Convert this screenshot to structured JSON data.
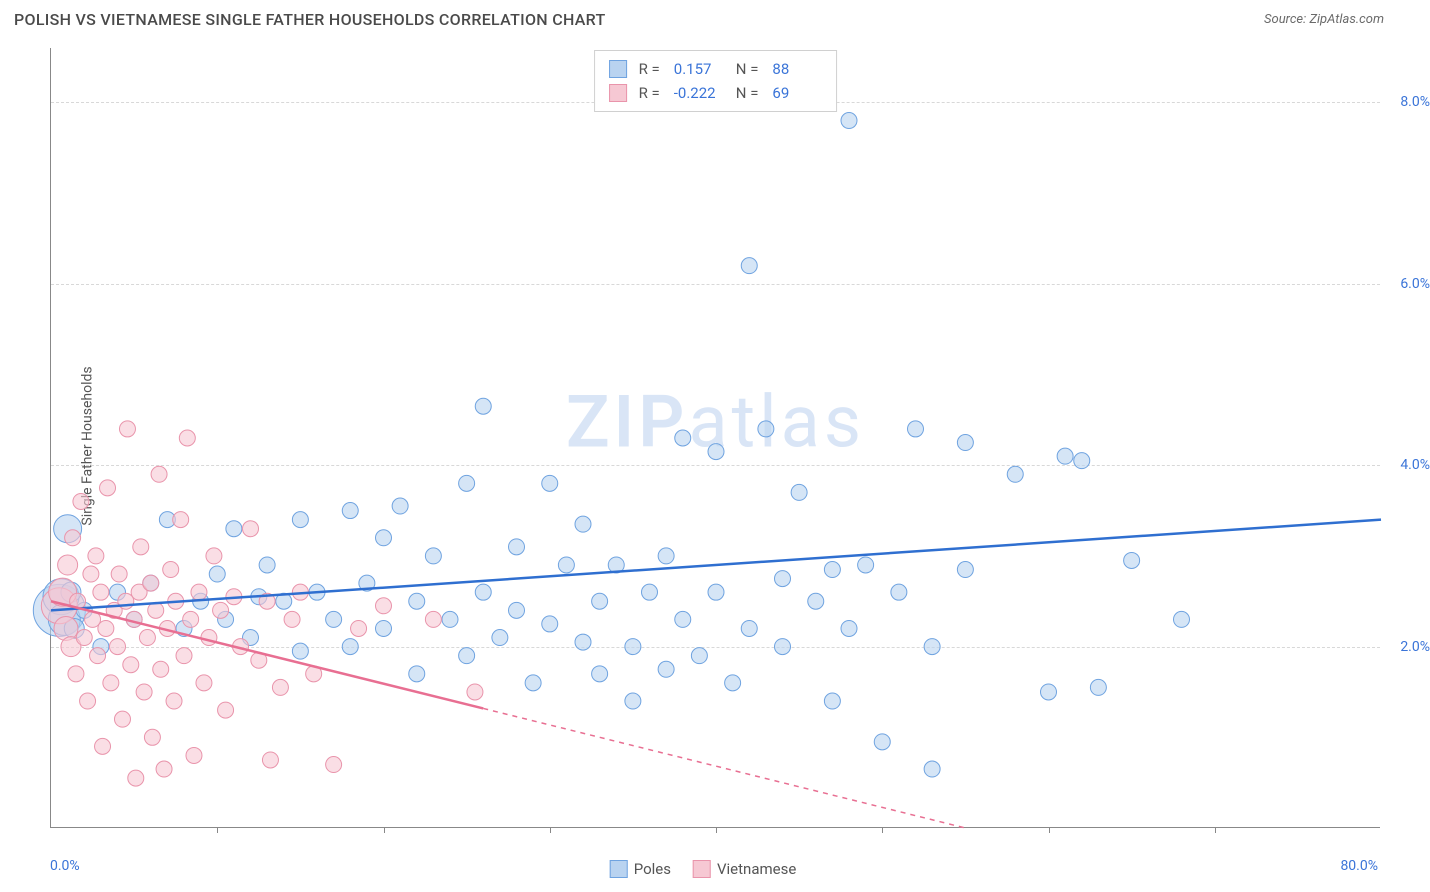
{
  "header": {
    "title": "POLISH VS VIETNAMESE SINGLE FATHER HOUSEHOLDS CORRELATION CHART",
    "source_prefix": "Source: ",
    "source_name": "ZipAtlas.com"
  },
  "chart": {
    "type": "scatter",
    "ylabel": "Single Father Households",
    "x_domain": [
      0,
      80
    ],
    "y_domain": [
      0,
      8.6
    ],
    "x_min_label": "0.0%",
    "x_max_label": "80.0%",
    "x_tick_positions": [
      10,
      20,
      30,
      40,
      50,
      60,
      70
    ],
    "y_ticks": [
      {
        "v": 2.0,
        "label": "2.0%"
      },
      {
        "v": 4.0,
        "label": "4.0%"
      },
      {
        "v": 6.0,
        "label": "6.0%"
      },
      {
        "v": 8.0,
        "label": "8.0%"
      }
    ],
    "axis_label_color": "#3a74d8",
    "grid_color": "#d8d8d8",
    "background_color": "#ffffff",
    "watermark": {
      "zip": "ZIP",
      "atlas": "atlas",
      "color": "#d9e5f6"
    },
    "series": [
      {
        "id": "poles",
        "name": "Poles",
        "fill": "#b9d3f0",
        "stroke": "#6fa3e0",
        "line_color": "#2f6fd0",
        "trend": {
          "x1": 0,
          "y1": 2.4,
          "x2": 80,
          "y2": 3.4,
          "solid_until_x": 80
        },
        "R_label": "R = ",
        "R": "0.157",
        "N_label": "N = ",
        "N": "88",
        "points": [
          {
            "x": 0.5,
            "y": 2.4,
            "r": 26
          },
          {
            "x": 0.6,
            "y": 2.55,
            "r": 18
          },
          {
            "x": 0.8,
            "y": 2.3,
            "r": 16
          },
          {
            "x": 1.0,
            "y": 3.3,
            "r": 14
          },
          {
            "x": 1.2,
            "y": 2.6,
            "r": 10
          },
          {
            "x": 1.4,
            "y": 2.2,
            "r": 10
          },
          {
            "x": 2,
            "y": 2.4,
            "r": 8
          },
          {
            "x": 3,
            "y": 2.0,
            "r": 8
          },
          {
            "x": 4,
            "y": 2.6,
            "r": 8
          },
          {
            "x": 5,
            "y": 2.3,
            "r": 8
          },
          {
            "x": 6,
            "y": 2.7,
            "r": 8
          },
          {
            "x": 7,
            "y": 3.4,
            "r": 8
          },
          {
            "x": 8,
            "y": 2.2,
            "r": 8
          },
          {
            "x": 9,
            "y": 2.5,
            "r": 8
          },
          {
            "x": 10,
            "y": 2.8,
            "r": 8
          },
          {
            "x": 10.5,
            "y": 2.3,
            "r": 8
          },
          {
            "x": 11,
            "y": 3.3,
            "r": 8
          },
          {
            "x": 12,
            "y": 2.1,
            "r": 8
          },
          {
            "x": 12.5,
            "y": 2.55,
            "r": 8
          },
          {
            "x": 13,
            "y": 2.9,
            "r": 8
          },
          {
            "x": 14,
            "y": 2.5,
            "r": 8
          },
          {
            "x": 15,
            "y": 1.95,
            "r": 8
          },
          {
            "x": 15,
            "y": 3.4,
            "r": 8
          },
          {
            "x": 16,
            "y": 2.6,
            "r": 8
          },
          {
            "x": 17,
            "y": 2.3,
            "r": 8
          },
          {
            "x": 18,
            "y": 3.5,
            "r": 8
          },
          {
            "x": 18,
            "y": 2.0,
            "r": 8
          },
          {
            "x": 19,
            "y": 2.7,
            "r": 8
          },
          {
            "x": 20,
            "y": 3.2,
            "r": 8
          },
          {
            "x": 20,
            "y": 2.2,
            "r": 8
          },
          {
            "x": 21,
            "y": 3.55,
            "r": 8
          },
          {
            "x": 22,
            "y": 2.5,
            "r": 8
          },
          {
            "x": 22,
            "y": 1.7,
            "r": 8
          },
          {
            "x": 23,
            "y": 3.0,
            "r": 8
          },
          {
            "x": 24,
            "y": 2.3,
            "r": 8
          },
          {
            "x": 25,
            "y": 3.8,
            "r": 8
          },
          {
            "x": 25,
            "y": 1.9,
            "r": 8
          },
          {
            "x": 26,
            "y": 4.65,
            "r": 8
          },
          {
            "x": 26,
            "y": 2.6,
            "r": 8
          },
          {
            "x": 27,
            "y": 2.1,
            "r": 8
          },
          {
            "x": 28,
            "y": 3.1,
            "r": 8
          },
          {
            "x": 28,
            "y": 2.4,
            "r": 8
          },
          {
            "x": 29,
            "y": 1.6,
            "r": 8
          },
          {
            "x": 30,
            "y": 3.8,
            "r": 8
          },
          {
            "x": 30,
            "y": 2.25,
            "r": 8
          },
          {
            "x": 31,
            "y": 2.9,
            "r": 8
          },
          {
            "x": 32,
            "y": 2.05,
            "r": 8
          },
          {
            "x": 32,
            "y": 3.35,
            "r": 8
          },
          {
            "x": 33,
            "y": 2.5,
            "r": 8
          },
          {
            "x": 33,
            "y": 1.7,
            "r": 8
          },
          {
            "x": 34,
            "y": 2.9,
            "r": 8
          },
          {
            "x": 35,
            "y": 2.0,
            "r": 8
          },
          {
            "x": 35,
            "y": 1.4,
            "r": 8
          },
          {
            "x": 36,
            "y": 2.6,
            "r": 8
          },
          {
            "x": 37,
            "y": 3.0,
            "r": 8
          },
          {
            "x": 37,
            "y": 1.75,
            "r": 8
          },
          {
            "x": 38,
            "y": 4.3,
            "r": 8
          },
          {
            "x": 38,
            "y": 2.3,
            "r": 8
          },
          {
            "x": 39,
            "y": 1.9,
            "r": 8
          },
          {
            "x": 40,
            "y": 4.15,
            "r": 8
          },
          {
            "x": 40,
            "y": 2.6,
            "r": 8
          },
          {
            "x": 41,
            "y": 1.6,
            "r": 8
          },
          {
            "x": 42,
            "y": 6.2,
            "r": 8
          },
          {
            "x": 42,
            "y": 2.2,
            "r": 8
          },
          {
            "x": 43,
            "y": 4.4,
            "r": 8
          },
          {
            "x": 44,
            "y": 2.75,
            "r": 8
          },
          {
            "x": 44,
            "y": 2.0,
            "r": 8
          },
          {
            "x": 45,
            "y": 3.7,
            "r": 8
          },
          {
            "x": 46,
            "y": 2.5,
            "r": 8
          },
          {
            "x": 47,
            "y": 1.4,
            "r": 8
          },
          {
            "x": 47,
            "y": 2.85,
            "r": 8
          },
          {
            "x": 48,
            "y": 7.8,
            "r": 8
          },
          {
            "x": 48,
            "y": 2.2,
            "r": 8
          },
          {
            "x": 49,
            "y": 2.9,
            "r": 8
          },
          {
            "x": 50,
            "y": 0.95,
            "r": 8
          },
          {
            "x": 51,
            "y": 2.6,
            "r": 8
          },
          {
            "x": 52,
            "y": 4.4,
            "r": 8
          },
          {
            "x": 53,
            "y": 0.65,
            "r": 8
          },
          {
            "x": 53,
            "y": 2.0,
            "r": 8
          },
          {
            "x": 55,
            "y": 4.25,
            "r": 8
          },
          {
            "x": 55,
            "y": 2.85,
            "r": 8
          },
          {
            "x": 58,
            "y": 3.9,
            "r": 8
          },
          {
            "x": 60,
            "y": 1.5,
            "r": 8
          },
          {
            "x": 61,
            "y": 4.1,
            "r": 8
          },
          {
            "x": 62,
            "y": 4.05,
            "r": 8
          },
          {
            "x": 63,
            "y": 1.55,
            "r": 8
          },
          {
            "x": 65,
            "y": 2.95,
            "r": 8
          },
          {
            "x": 68,
            "y": 2.3,
            "r": 8
          }
        ]
      },
      {
        "id": "vietnamese",
        "name": "Vietnamese",
        "fill": "#f6c8d3",
        "stroke": "#e994ab",
        "line_color": "#e86f92",
        "trend": {
          "x1": 0,
          "y1": 2.5,
          "x2": 55,
          "y2": 0.0,
          "solid_until_x": 26
        },
        "R_label": "R = ",
        "R": "-0.222",
        "N_label": "N = ",
        "N": "69",
        "points": [
          {
            "x": 0.5,
            "y": 2.45,
            "r": 18
          },
          {
            "x": 0.7,
            "y": 2.6,
            "r": 14
          },
          {
            "x": 0.9,
            "y": 2.2,
            "r": 12
          },
          {
            "x": 1.0,
            "y": 2.9,
            "r": 10
          },
          {
            "x": 1.2,
            "y": 2.0,
            "r": 10
          },
          {
            "x": 1.3,
            "y": 3.2,
            "r": 8
          },
          {
            "x": 1.5,
            "y": 1.7,
            "r": 8
          },
          {
            "x": 1.6,
            "y": 2.5,
            "r": 8
          },
          {
            "x": 1.8,
            "y": 3.6,
            "r": 8
          },
          {
            "x": 2.0,
            "y": 2.1,
            "r": 8
          },
          {
            "x": 2.2,
            "y": 1.4,
            "r": 8
          },
          {
            "x": 2.4,
            "y": 2.8,
            "r": 8
          },
          {
            "x": 2.5,
            "y": 2.3,
            "r": 8
          },
          {
            "x": 2.7,
            "y": 3.0,
            "r": 8
          },
          {
            "x": 2.8,
            "y": 1.9,
            "r": 8
          },
          {
            "x": 3.0,
            "y": 2.6,
            "r": 8
          },
          {
            "x": 3.1,
            "y": 0.9,
            "r": 8
          },
          {
            "x": 3.3,
            "y": 2.2,
            "r": 8
          },
          {
            "x": 3.4,
            "y": 3.75,
            "r": 8
          },
          {
            "x": 3.6,
            "y": 1.6,
            "r": 8
          },
          {
            "x": 3.8,
            "y": 2.4,
            "r": 8
          },
          {
            "x": 4.0,
            "y": 2.0,
            "r": 8
          },
          {
            "x": 4.1,
            "y": 2.8,
            "r": 8
          },
          {
            "x": 4.3,
            "y": 1.2,
            "r": 8
          },
          {
            "x": 4.5,
            "y": 2.5,
            "r": 8
          },
          {
            "x": 4.6,
            "y": 4.4,
            "r": 8
          },
          {
            "x": 4.8,
            "y": 1.8,
            "r": 8
          },
          {
            "x": 5.0,
            "y": 2.3,
            "r": 8
          },
          {
            "x": 5.1,
            "y": 0.55,
            "r": 8
          },
          {
            "x": 5.3,
            "y": 2.6,
            "r": 8
          },
          {
            "x": 5.4,
            "y": 3.1,
            "r": 8
          },
          {
            "x": 5.6,
            "y": 1.5,
            "r": 8
          },
          {
            "x": 5.8,
            "y": 2.1,
            "r": 8
          },
          {
            "x": 6.0,
            "y": 2.7,
            "r": 8
          },
          {
            "x": 6.1,
            "y": 1.0,
            "r": 8
          },
          {
            "x": 6.3,
            "y": 2.4,
            "r": 8
          },
          {
            "x": 6.5,
            "y": 3.9,
            "r": 8
          },
          {
            "x": 6.6,
            "y": 1.75,
            "r": 8
          },
          {
            "x": 6.8,
            "y": 0.65,
            "r": 8
          },
          {
            "x": 7.0,
            "y": 2.2,
            "r": 8
          },
          {
            "x": 7.2,
            "y": 2.85,
            "r": 8
          },
          {
            "x": 7.4,
            "y": 1.4,
            "r": 8
          },
          {
            "x": 7.5,
            "y": 2.5,
            "r": 8
          },
          {
            "x": 7.8,
            "y": 3.4,
            "r": 8
          },
          {
            "x": 8.0,
            "y": 1.9,
            "r": 8
          },
          {
            "x": 8.2,
            "y": 4.3,
            "r": 8
          },
          {
            "x": 8.4,
            "y": 2.3,
            "r": 8
          },
          {
            "x": 8.6,
            "y": 0.8,
            "r": 8
          },
          {
            "x": 8.9,
            "y": 2.6,
            "r": 8
          },
          {
            "x": 9.2,
            "y": 1.6,
            "r": 8
          },
          {
            "x": 9.5,
            "y": 2.1,
            "r": 8
          },
          {
            "x": 9.8,
            "y": 3.0,
            "r": 8
          },
          {
            "x": 10.2,
            "y": 2.4,
            "r": 8
          },
          {
            "x": 10.5,
            "y": 1.3,
            "r": 8
          },
          {
            "x": 11.0,
            "y": 2.55,
            "r": 8
          },
          {
            "x": 11.4,
            "y": 2.0,
            "r": 8
          },
          {
            "x": 12.0,
            "y": 3.3,
            "r": 8
          },
          {
            "x": 12.5,
            "y": 1.85,
            "r": 8
          },
          {
            "x": 13.0,
            "y": 2.5,
            "r": 8
          },
          {
            "x": 13.2,
            "y": 0.75,
            "r": 8
          },
          {
            "x": 13.8,
            "y": 1.55,
            "r": 8
          },
          {
            "x": 14.5,
            "y": 2.3,
            "r": 8
          },
          {
            "x": 15.0,
            "y": 2.6,
            "r": 8
          },
          {
            "x": 15.8,
            "y": 1.7,
            "r": 8
          },
          {
            "x": 17.0,
            "y": 0.7,
            "r": 8
          },
          {
            "x": 18.5,
            "y": 2.2,
            "r": 8
          },
          {
            "x": 20.0,
            "y": 2.45,
            "r": 8
          },
          {
            "x": 23.0,
            "y": 2.3,
            "r": 8
          },
          {
            "x": 25.5,
            "y": 1.5,
            "r": 8
          }
        ]
      }
    ],
    "bottom_legend": [
      {
        "name": "Poles",
        "fill": "#b9d3f0",
        "stroke": "#6fa3e0"
      },
      {
        "name": "Vietnamese",
        "fill": "#f6c8d3",
        "stroke": "#e994ab"
      }
    ]
  }
}
